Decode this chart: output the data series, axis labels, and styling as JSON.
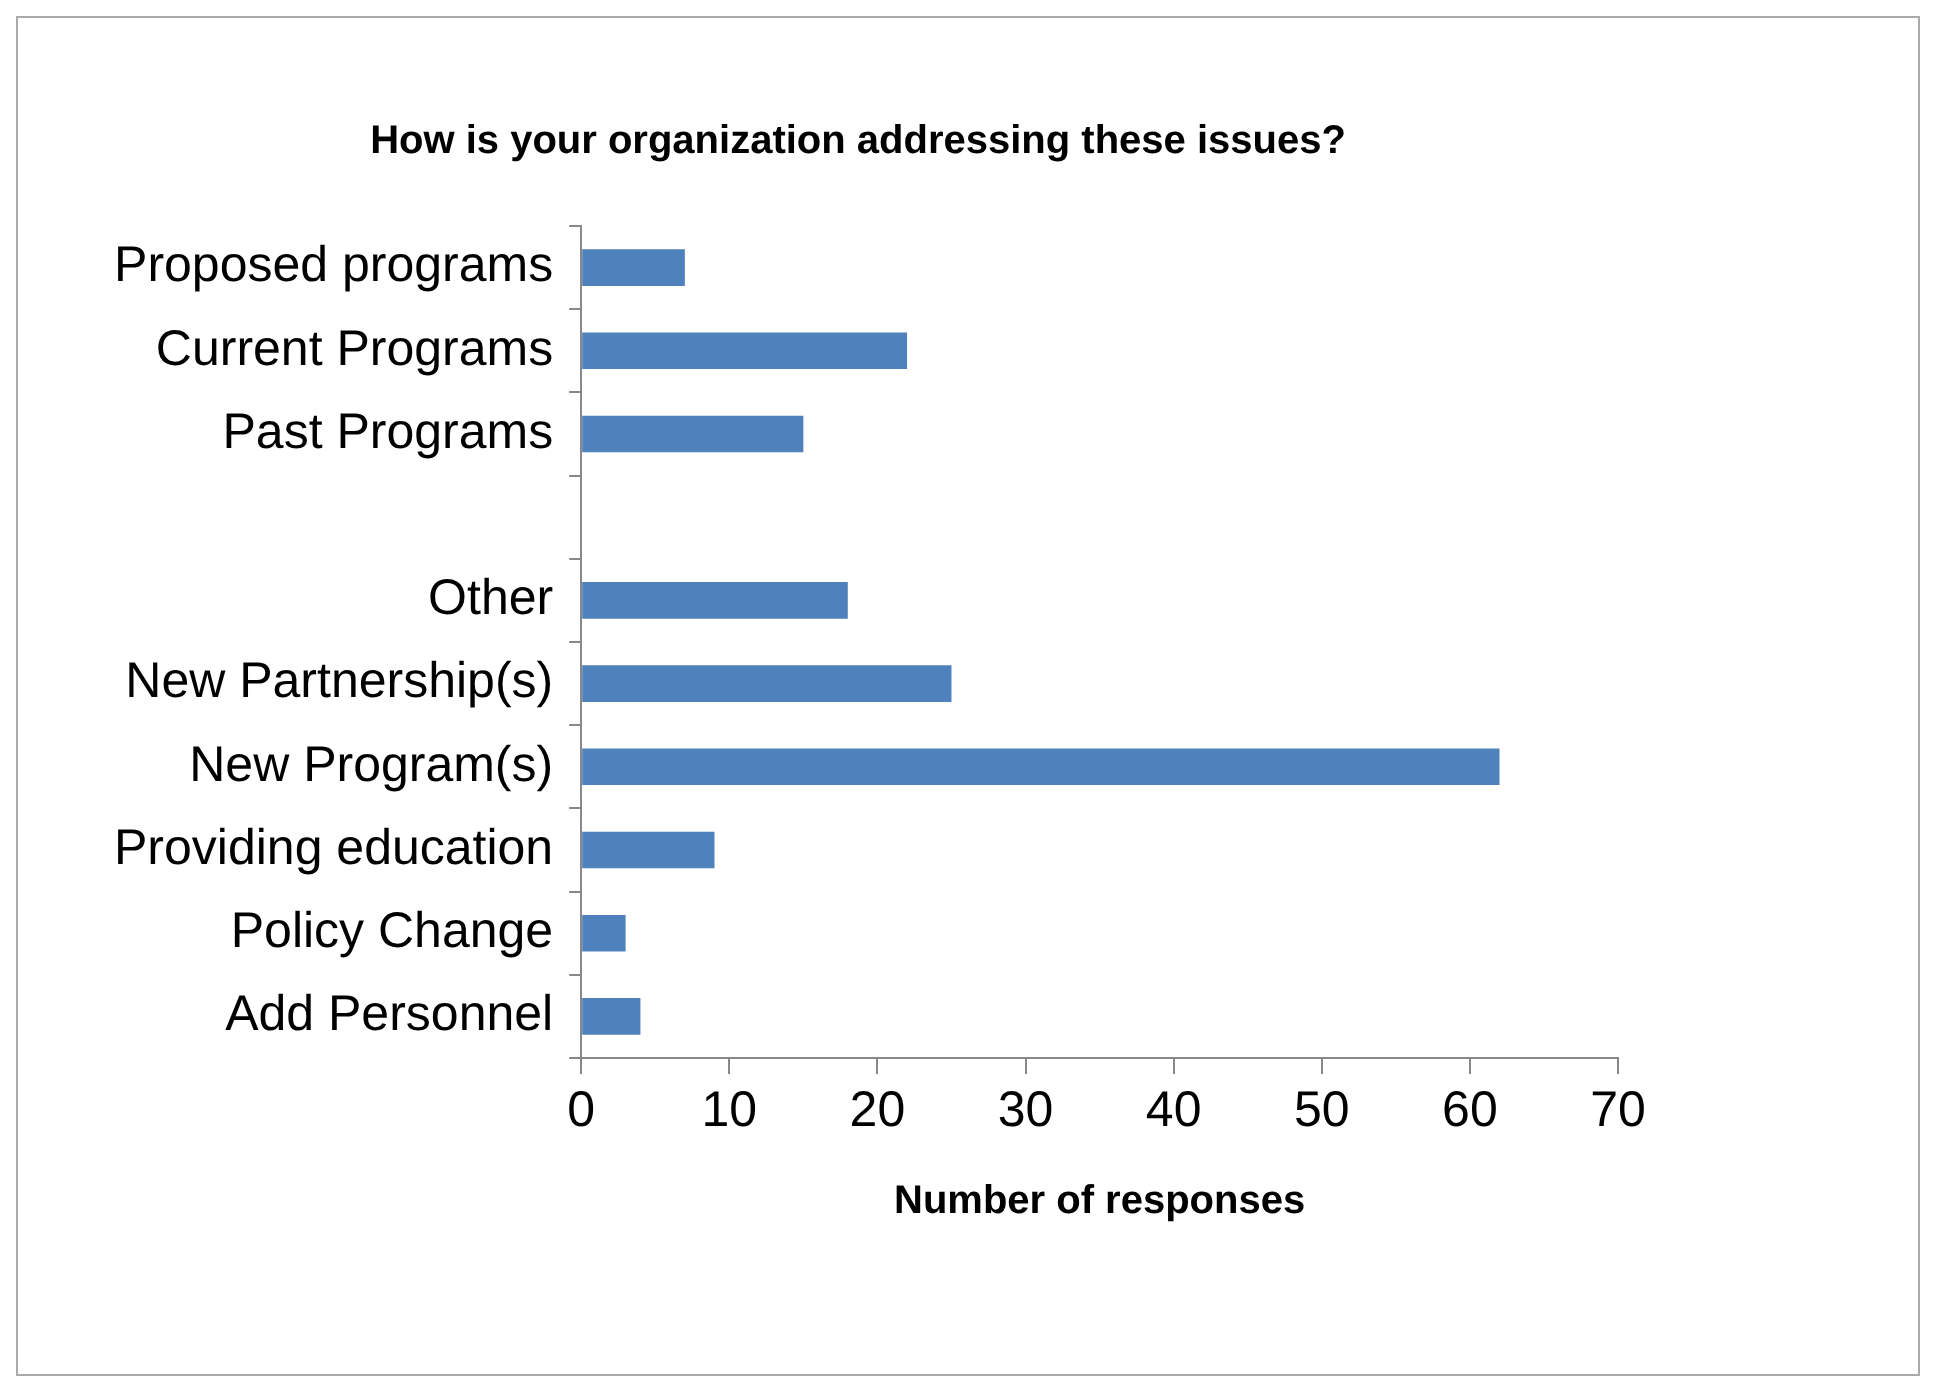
{
  "chart_data": {
    "type": "bar",
    "orientation": "horizontal",
    "title": "How is your organization addressing these issues?",
    "xlabel": "Number of responses",
    "categories": [
      "Proposed programs",
      "Current Programs",
      "Past Programs",
      null,
      "Other",
      "New Partnership(s)",
      "New Program(s)",
      "Providing education",
      "Policy Change",
      "Add Personnel"
    ],
    "values": [
      7,
      22,
      15,
      null,
      18,
      25,
      62,
      9,
      3,
      4
    ],
    "color": "#4f81bd",
    "xlim": [
      0,
      70
    ],
    "xticks": [
      0,
      10,
      20,
      30,
      40,
      50,
      60,
      70
    ],
    "grid": false,
    "legend": false
  }
}
